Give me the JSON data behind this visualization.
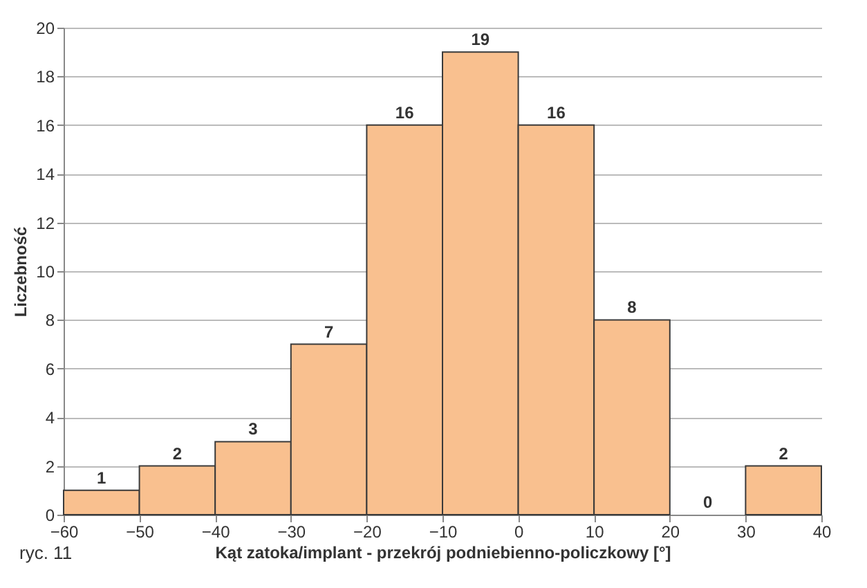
{
  "chart_data": {
    "type": "histogram",
    "xlabel": "Kąt zatoka/implant - przekrój podniebienno-policzkowy [°]",
    "ylabel": "Liczebność",
    "bins": [
      -60,
      -50,
      -40,
      -30,
      -20,
      -10,
      0,
      10,
      20,
      30,
      40
    ],
    "values": [
      1,
      2,
      3,
      7,
      16,
      19,
      16,
      8,
      0,
      2
    ],
    "color": "#f9c08f",
    "xlim": [
      -60,
      40
    ],
    "xticks": [
      -60,
      -50,
      -40,
      -30,
      -20,
      -10,
      0,
      10,
      20,
      30,
      40
    ],
    "ylim": [
      0,
      20
    ],
    "yticks": [
      0,
      2,
      4,
      6,
      8,
      10,
      12,
      14,
      16,
      18,
      20
    ],
    "grid": "y",
    "data_labels": true,
    "annotations": [
      "ryc. 11"
    ]
  }
}
